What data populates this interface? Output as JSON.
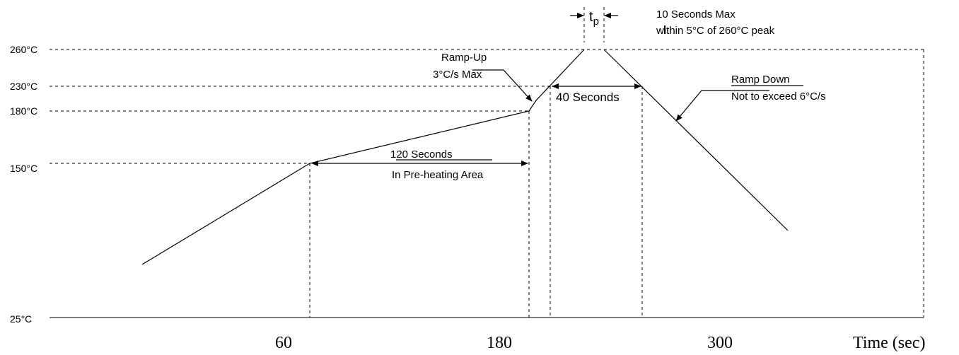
{
  "y_axis_labels": {
    "t260": "260°C",
    "t230": "230°C",
    "t180": "180°C",
    "t150": "150°C",
    "t25": "25°C"
  },
  "x_axis_labels": {
    "x60": "60",
    "x180": "180",
    "x300": "300",
    "axis_title": "Time (sec)"
  },
  "annotations": {
    "tp_symbol": "t",
    "tp_subscript": "p",
    "peak_line1": "10 Seconds Max",
    "peak_line2": "within 5°C of 260°C peak",
    "ramp_up_line1": "Ramp-Up",
    "ramp_up_line2": "3°C/s Max",
    "ramp_down_line1": "Ramp Down",
    "ramp_down_line2": "Not to exceed 6°C/s",
    "forty_seconds": "40 Seconds",
    "preheat_line1": "120 Seconds",
    "preheat_line2": "In Pre-heating Area"
  }
}
